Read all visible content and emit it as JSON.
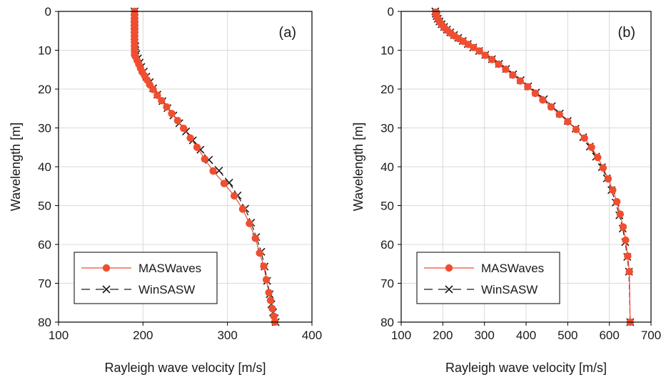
{
  "chart_data": [
    {
      "type": "line",
      "panel_label": "(a)",
      "xlabel": "Rayleigh wave velocity [m/s]",
      "ylabel": "Wavelength [m]",
      "xlim": [
        100,
        400
      ],
      "ylim": [
        0,
        80
      ],
      "y_inverted": true,
      "xticks": [
        100,
        200,
        300,
        400
      ],
      "yticks": [
        0,
        10,
        20,
        30,
        40,
        50,
        60,
        70,
        80
      ],
      "grid": true,
      "legend_position": "bottom-left",
      "series": [
        {
          "name": "MASWaves",
          "color": "#f04e30",
          "marker": "circle",
          "line_style": "solid",
          "x": [
            190,
            190,
            190,
            190,
            190,
            190,
            190,
            190,
            190,
            190,
            190,
            190,
            190,
            190,
            190,
            191,
            193,
            195,
            197,
            199,
            202,
            205,
            208,
            212,
            217,
            222,
            228,
            234,
            241,
            248,
            256,
            264,
            273,
            283,
            296,
            308,
            318,
            326,
            333,
            338,
            343,
            346,
            349,
            351,
            353,
            355,
            356
          ],
          "y": [
            0,
            0.8,
            1.6,
            2.4,
            3.2,
            4,
            4.8,
            5.6,
            6.4,
            7.2,
            8,
            8.8,
            9.6,
            10.4,
            11.2,
            11.6,
            12.6,
            13.6,
            14.6,
            15.6,
            16.6,
            17.7,
            18.9,
            20.1,
            21.6,
            23,
            24.6,
            26.3,
            28.1,
            30.1,
            32.6,
            35,
            38,
            41.1,
            44.3,
            47.5,
            50.9,
            54.6,
            58.4,
            62.2,
            65.6,
            69.1,
            72.4,
            74.4,
            76.5,
            78.5,
            80
          ]
        },
        {
          "name": "WinSASW",
          "color": "#1a1a1a",
          "marker": "x",
          "line_style": "dashed",
          "x": [
            190,
            190,
            190,
            190,
            190,
            190,
            190,
            190,
            190,
            190,
            191,
            191,
            192,
            194,
            196,
            198,
            201,
            204,
            208,
            212,
            217,
            223,
            229,
            236,
            243,
            251,
            259,
            268,
            278,
            290,
            302,
            312,
            321,
            328,
            334,
            340,
            344,
            347,
            350,
            352,
            354,
            356,
            357
          ],
          "y": [
            0,
            0.9,
            1.8,
            2.7,
            3.6,
            4.5,
            5.4,
            6.3,
            7.2,
            8.1,
            9,
            10,
            11,
            12.1,
            13.2,
            14.3,
            15.5,
            16.8,
            18.2,
            19.8,
            21.4,
            23.1,
            24.9,
            26.8,
            28.8,
            30.9,
            33.2,
            35.6,
            38.2,
            41,
            44.1,
            47.4,
            50.8,
            54.4,
            58.1,
            61.9,
            65.7,
            69.4,
            72.8,
            75.4,
            77.5,
            79,
            80
          ]
        }
      ]
    },
    {
      "type": "line",
      "panel_label": "(b)",
      "xlabel": "Rayleigh wave velocity [m/s]",
      "ylabel": "Wavelength [m]",
      "xlim": [
        100,
        700
      ],
      "ylim": [
        0,
        80
      ],
      "y_inverted": true,
      "xticks": [
        100,
        200,
        300,
        400,
        500,
        600,
        700
      ],
      "yticks": [
        0,
        10,
        20,
        30,
        40,
        50,
        60,
        70,
        80
      ],
      "grid": true,
      "legend_position": "bottom-left",
      "series": [
        {
          "name": "MASWaves",
          "color": "#f04e30",
          "marker": "circle",
          "line_style": "solid",
          "x": [
            183,
            184,
            186,
            189,
            193,
            198,
            204,
            211,
            219,
            228,
            238,
            249,
            261,
            274,
            288,
            302,
            318,
            334,
            351,
            368,
            386,
            404,
            422,
            440,
            460,
            480,
            500,
            520,
            540,
            557,
            572,
            585,
            597,
            608,
            618,
            626,
            633,
            639,
            644,
            648,
            650
          ],
          "y": [
            0.2,
            0.8,
            1.4,
            2.1,
            2.8,
            3.5,
            4.2,
            4.9,
            5.6,
            6.3,
            7,
            7.7,
            8.5,
            9.3,
            10.2,
            11.3,
            12.4,
            13.6,
            14.9,
            16.4,
            17.9,
            19.4,
            21.1,
            22.8,
            24.6,
            26.5,
            28.4,
            30.4,
            32.6,
            35,
            37.6,
            40.3,
            43.1,
            46,
            49,
            52.2,
            55.5,
            58.9,
            63,
            67,
            80
          ]
        },
        {
          "name": "WinSASW",
          "color": "#1a1a1a",
          "marker": "x",
          "line_style": "dashed",
          "x": [
            182,
            183,
            185,
            188,
            192,
            197,
            203,
            210,
            218,
            227,
            237,
            248,
            260,
            273,
            287,
            302,
            318,
            335,
            352,
            369,
            387,
            405,
            424,
            443,
            462,
            481,
            500,
            519,
            537,
            553,
            568,
            582,
            594,
            605,
            615,
            624,
            632,
            638,
            643,
            647,
            650
          ],
          "y": [
            0,
            0.6,
            1.2,
            1.9,
            2.6,
            3.3,
            4,
            4.7,
            5.4,
            6.1,
            6.8,
            7.6,
            8.4,
            9.3,
            10.2,
            11.2,
            12.3,
            13.5,
            14.8,
            16.2,
            17.7,
            19.3,
            20.9,
            22.6,
            24.4,
            26.3,
            28.2,
            30.2,
            32.4,
            34.8,
            37.4,
            40.1,
            43,
            46,
            49.2,
            52.5,
            55.9,
            59.4,
            63.2,
            67,
            80
          ]
        }
      ]
    }
  ]
}
